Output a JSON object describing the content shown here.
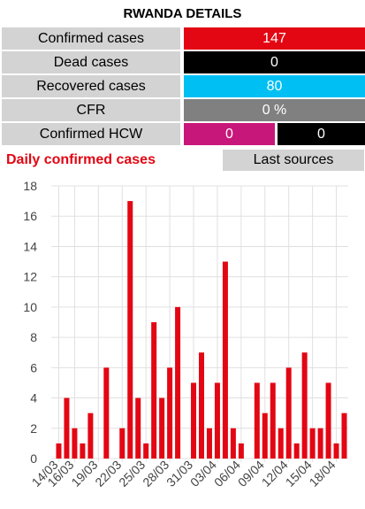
{
  "title": "RWANDA DETAILS",
  "stats": {
    "confirmed": {
      "label": "Confirmed cases",
      "value": "147"
    },
    "dead": {
      "label": "Dead cases",
      "value": "0"
    },
    "recovered": {
      "label": "Recovered cases",
      "value": "80"
    },
    "cfr": {
      "label": "CFR",
      "value": "0 %"
    },
    "hcw": {
      "label": "Confirmed HCW",
      "value1": "0",
      "value2": "0"
    }
  },
  "colors": {
    "confirmed": "#e30613",
    "dead": "#000000",
    "recovered": "#00bff3",
    "cfr": "#808080",
    "hcw": "#c8177a",
    "bar": "#e30613",
    "grid": "#e0e0e0"
  },
  "daily_title": "Daily confirmed cases",
  "sources_button": "Last sources",
  "chart_data": {
    "type": "bar",
    "title": "Daily confirmed cases",
    "xlabel": "",
    "ylabel": "",
    "ylim": [
      0,
      18
    ],
    "yticks": [
      0,
      2,
      4,
      6,
      8,
      10,
      12,
      14,
      16,
      18
    ],
    "grid": true,
    "categories": [
      "14/03",
      "15/03",
      "16/03",
      "17/03",
      "18/03",
      "19/03",
      "20/03",
      "21/03",
      "22/03",
      "23/03",
      "24/03",
      "25/03",
      "26/03",
      "27/03",
      "28/03",
      "29/03",
      "30/03",
      "31/03",
      "01/04",
      "02/04",
      "03/04",
      "04/04",
      "05/04",
      "06/04",
      "07/04",
      "08/04",
      "09/04",
      "10/04",
      "11/04",
      "12/04",
      "13/04",
      "14/04",
      "15/04",
      "16/04",
      "17/04",
      "18/04",
      "19/04"
    ],
    "values": [
      1,
      4,
      2,
      1,
      3,
      0,
      6,
      0,
      2,
      17,
      4,
      1,
      9,
      4,
      6,
      10,
      0,
      5,
      7,
      2,
      5,
      13,
      2,
      1,
      0,
      5,
      3,
      5,
      2,
      6,
      1,
      7,
      2,
      2,
      5,
      1,
      3
    ],
    "tick_labels": [
      "14/03",
      "16/03",
      "19/03",
      "22/03",
      "25/03",
      "28/03",
      "31/03",
      "03/04",
      "06/04",
      "09/04",
      "12/04",
      "15/04",
      "18/04"
    ]
  }
}
